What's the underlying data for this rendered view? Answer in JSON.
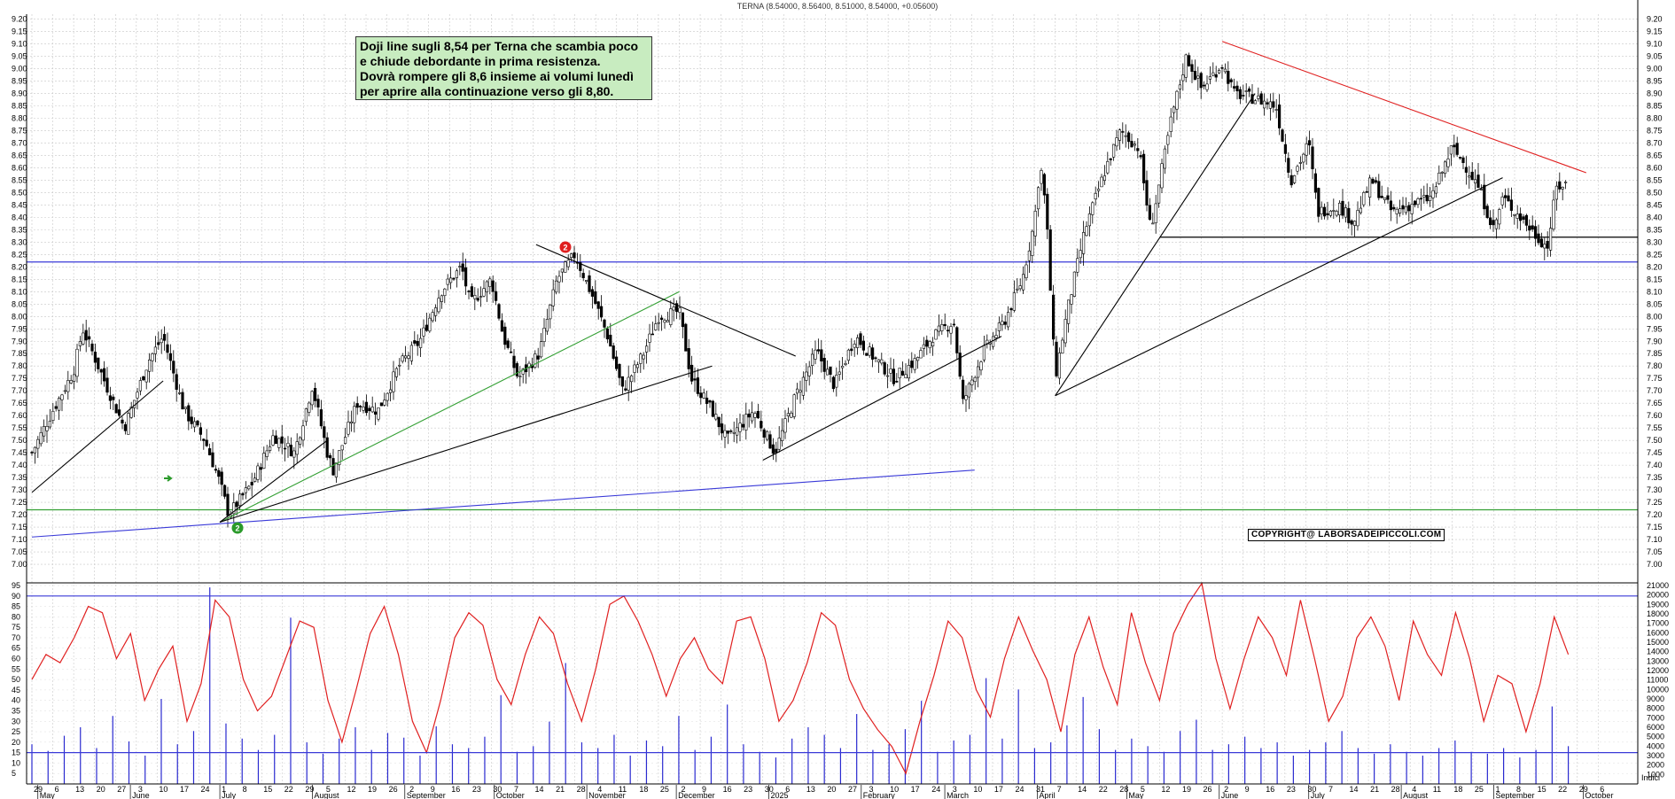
{
  "header": {
    "title": "TERNA (8.54000, 8.56400, 8.51000, 8.54000, +0.05600)"
  },
  "annotation": {
    "lines": [
      "Doji line sugli 8,54 per Terna che scambia poco",
      "e chiude debordante in prima resistenza.",
      "Dovrà rompere gli 8,6 insieme ai volumi lunedì",
      "per aprire alla continuazione verso gli 8,80."
    ]
  },
  "copyright": "COPYRIGHT@ LABORSADEIPICCOLI.COM",
  "markers": {
    "red_label": "2",
    "green_label": "2"
  },
  "colors": {
    "grid": "#c8c8c8",
    "candle": "#000000",
    "support_blue": "#3a3ad8",
    "support_green": "#35a035",
    "trend_red": "#e02020",
    "trend_black": "#000000",
    "oscillator": "#e02020",
    "volume": "#2a2ad0",
    "note_bg": "#c8ecc0"
  },
  "chart_data": [
    {
      "type": "candlestick",
      "title": "TERNA (8.54000, 8.56400, 8.51000, 8.54000, +0.05600)",
      "ylim": [
        6.95,
        9.22
      ],
      "y_ticks": [
        "7.00",
        "7.05",
        "7.10",
        "7.15",
        "7.20",
        "7.25",
        "7.30",
        "7.35",
        "7.40",
        "7.45",
        "7.50",
        "7.55",
        "7.60",
        "7.65",
        "7.70",
        "7.75",
        "7.80",
        "7.85",
        "7.90",
        "7.95",
        "8.00",
        "8.05",
        "8.10",
        "8.15",
        "8.20",
        "8.25",
        "8.30",
        "8.35",
        "8.40",
        "8.45",
        "8.50",
        "8.55",
        "8.60",
        "8.65",
        "8.70",
        "8.75",
        "8.80",
        "8.85",
        "8.90",
        "8.95",
        "9.00",
        "9.05",
        "9.10",
        "9.15",
        "9.20"
      ],
      "close_path": [
        [
          "2024-04-29",
          7.45
        ],
        [
          "2024-05-06",
          7.62
        ],
        [
          "2024-05-13",
          7.78
        ],
        [
          "2024-05-16",
          7.95
        ],
        [
          "2024-05-24",
          7.72
        ],
        [
          "2024-05-30",
          7.55
        ],
        [
          "2024-06-07",
          7.82
        ],
        [
          "2024-06-12",
          7.92
        ],
        [
          "2024-06-19",
          7.62
        ],
        [
          "2024-06-26",
          7.5
        ],
        [
          "2024-07-01",
          7.33
        ],
        [
          "2024-07-04",
          7.2
        ],
        [
          "2024-07-12",
          7.33
        ],
        [
          "2024-07-19",
          7.52
        ],
        [
          "2024-07-26",
          7.45
        ],
        [
          "2024-08-01",
          7.72
        ],
        [
          "2024-08-06",
          7.45
        ],
        [
          "2024-08-08",
          7.38
        ],
        [
          "2024-08-16",
          7.65
        ],
        [
          "2024-08-23",
          7.62
        ],
        [
          "2024-08-30",
          7.8
        ],
        [
          "2024-09-06",
          7.9
        ],
        [
          "2024-09-13",
          8.1
        ],
        [
          "2024-09-20",
          8.2
        ],
        [
          "2024-09-23",
          8.05
        ],
        [
          "2024-09-30",
          8.15
        ],
        [
          "2024-10-04",
          7.92
        ],
        [
          "2024-10-09",
          7.75
        ],
        [
          "2024-10-16",
          7.85
        ],
        [
          "2024-10-22",
          8.15
        ],
        [
          "2024-10-28",
          8.25
        ],
        [
          "2024-11-04",
          8.05
        ],
        [
          "2024-11-08",
          7.92
        ],
        [
          "2024-11-13",
          7.7
        ],
        [
          "2024-11-20",
          7.85
        ],
        [
          "2024-11-25",
          8.0
        ],
        [
          "2024-12-02",
          8.02
        ],
        [
          "2024-12-06",
          7.75
        ],
        [
          "2024-12-13",
          7.62
        ],
        [
          "2024-12-18",
          7.5
        ],
        [
          "2024-12-27",
          7.62
        ],
        [
          "2025-01-03",
          7.45
        ],
        [
          "2025-01-10",
          7.68
        ],
        [
          "2025-01-17",
          7.86
        ],
        [
          "2025-01-23",
          7.72
        ],
        [
          "2025-01-30",
          7.92
        ],
        [
          "2025-02-04",
          7.85
        ],
        [
          "2025-02-12",
          7.75
        ],
        [
          "2025-02-19",
          7.82
        ],
        [
          "2025-02-25",
          7.92
        ],
        [
          "2025-03-04",
          7.98
        ],
        [
          "2025-03-07",
          7.65
        ],
        [
          "2025-03-14",
          7.86
        ],
        [
          "2025-03-21",
          7.98
        ],
        [
          "2025-03-27",
          8.15
        ],
        [
          "2025-03-31",
          8.38
        ],
        [
          "2025-04-02",
          8.62
        ],
        [
          "2025-04-04",
          8.42
        ],
        [
          "2025-04-07",
          7.75
        ],
        [
          "2025-04-11",
          8.02
        ],
        [
          "2025-04-17",
          8.35
        ],
        [
          "2025-04-24",
          8.6
        ],
        [
          "2025-04-29",
          8.75
        ],
        [
          "2025-05-05",
          8.68
        ],
        [
          "2025-05-09",
          8.35
        ],
        [
          "2025-05-16",
          8.8
        ],
        [
          "2025-05-21",
          9.05
        ],
        [
          "2025-05-26",
          8.92
        ],
        [
          "2025-06-02",
          9.02
        ],
        [
          "2025-06-06",
          8.9
        ],
        [
          "2025-06-13",
          8.88
        ],
        [
          "2025-06-20",
          8.85
        ],
        [
          "2025-06-25",
          8.55
        ],
        [
          "2025-07-01",
          8.7
        ],
        [
          "2025-07-04",
          8.42
        ],
        [
          "2025-07-11",
          8.45
        ],
        [
          "2025-07-16",
          8.38
        ],
        [
          "2025-07-22",
          8.55
        ],
        [
          "2025-07-29",
          8.42
        ],
        [
          "2025-08-04",
          8.45
        ],
        [
          "2025-08-11",
          8.48
        ],
        [
          "2025-08-18",
          8.68
        ],
        [
          "2025-08-22",
          8.62
        ],
        [
          "2025-08-27",
          8.52
        ],
        [
          "2025-09-01",
          8.35
        ],
        [
          "2025-09-04",
          8.48
        ],
        [
          "2025-09-10",
          8.4
        ],
        [
          "2025-09-15",
          8.33
        ],
        [
          "2025-09-19",
          8.28
        ],
        [
          "2025-09-22",
          8.52
        ],
        [
          "2025-09-26",
          8.54
        ]
      ],
      "last_close": 8.54,
      "horizontal_levels": [
        {
          "y": 8.22,
          "color": "blue"
        },
        {
          "y": 7.22,
          "color": "green"
        },
        {
          "y": 8.32,
          "color": "black",
          "from": "2025-05-12"
        }
      ],
      "trendlines": [
        {
          "color": "black",
          "from": [
            "2024-04-29",
            7.29
          ],
          "to": [
            "2024-06-12",
            7.74
          ]
        },
        {
          "color": "blue",
          "from": [
            "2024-04-29",
            7.11
          ],
          "to": [
            "2025-03-11",
            7.38
          ]
        },
        {
          "color": "green",
          "from": [
            "2024-07-01",
            7.17
          ],
          "to": [
            "2024-12-02",
            8.1
          ]
        },
        {
          "color": "black",
          "from": [
            "2024-07-01",
            7.17
          ],
          "to": [
            "2024-12-13",
            7.8
          ]
        },
        {
          "color": "black",
          "from": [
            "2024-07-01",
            7.17
          ],
          "to": [
            "2024-08-06",
            7.5
          ]
        },
        {
          "color": "black",
          "from": [
            "2024-10-15",
            8.29
          ],
          "to": [
            "2025-01-10",
            7.84
          ]
        },
        {
          "color": "black",
          "from": [
            "2024-12-30",
            7.42
          ],
          "to": [
            "2025-03-20",
            7.92
          ]
        },
        {
          "color": "black",
          "from": [
            "2025-04-07",
            7.68
          ],
          "to": [
            "2025-06-13",
            8.9
          ]
        },
        {
          "color": "black",
          "from": [
            "2025-04-07",
            7.68
          ],
          "to": [
            "2025-09-04",
            8.56
          ]
        },
        {
          "color": "red",
          "from": [
            "2025-06-02",
            9.11
          ],
          "to": [
            "2025-10-02",
            8.58
          ]
        }
      ]
    },
    {
      "type": "line",
      "name": "oscillator",
      "ylim": [
        0,
        95
      ],
      "y_ticks": [
        "5",
        "10",
        "15",
        "20",
        "25",
        "30",
        "35",
        "40",
        "45",
        "50",
        "55",
        "60",
        "65",
        "70",
        "75",
        "80",
        "85",
        "90",
        "95"
      ],
      "levels": [
        90,
        15
      ],
      "series": [
        {
          "values": [
            50,
            62,
            58,
            70,
            85,
            82,
            60,
            72,
            40,
            55,
            66,
            30,
            48,
            88,
            80,
            50,
            35,
            42,
            60,
            78,
            75,
            40,
            20,
            45,
            72,
            85,
            62,
            30,
            15,
            40,
            70,
            82,
            76,
            50,
            38,
            62,
            80,
            72,
            48,
            30,
            55,
            86,
            90,
            78,
            62,
            42,
            60,
            70,
            55,
            48,
            78,
            80,
            60,
            30,
            40,
            58,
            82,
            76,
            50,
            36,
            26,
            18,
            5,
            30,
            52,
            78,
            70,
            45,
            32,
            60,
            80,
            64,
            50,
            25,
            62,
            80,
            56,
            38,
            82,
            58,
            40,
            72,
            86,
            96,
            60,
            36,
            60,
            80,
            70,
            52,
            88,
            60,
            30,
            42,
            70,
            80,
            66,
            40,
            78,
            62,
            52,
            82,
            60,
            30,
            52,
            48,
            25,
            48,
            80,
            62
          ]
        }
      ]
    },
    {
      "type": "bar",
      "name": "volume",
      "ylim": [
        0,
        21000
      ],
      "y_ticks": [
        "1000",
        "2000",
        "3000",
        "4000",
        "5000",
        "6000",
        "7000",
        "8000",
        "9000",
        "10000",
        "11000",
        "12000",
        "13000",
        "14000",
        "15000",
        "16000",
        "17000",
        "18000",
        "19000",
        "20000",
        "21000"
      ],
      "values": [
        4200,
        3500,
        5100,
        6000,
        3800,
        7200,
        4500,
        3000,
        9000,
        4200,
        5600,
        20800,
        6400,
        4800,
        3600,
        5200,
        17600,
        4400,
        3200,
        4800,
        6000,
        3600,
        5400,
        4900,
        3000,
        6100,
        4200,
        3800,
        5000,
        9400,
        3400,
        4000,
        6600,
        12800,
        4400,
        3800,
        5200,
        3000,
        4600,
        4000,
        7200,
        3600,
        5000,
        8400,
        4200,
        3400,
        2800,
        4800,
        6000,
        5200,
        3800,
        7400,
        3600,
        4200,
        5800,
        8800,
        3400,
        4600,
        5200,
        11200,
        4800,
        10000,
        3800,
        4400,
        6200,
        9200,
        5800,
        3600,
        4800,
        4000,
        3400,
        5600,
        6800,
        3600,
        4200,
        5000,
        3800,
        4400,
        3000,
        3600,
        4400,
        5600,
        3800,
        3200,
        4200,
        3400,
        3000,
        3800,
        4600,
        3400,
        3200,
        3800,
        2800,
        3600,
        8200,
        4000
      ]
    }
  ],
  "x_axis": {
    "day_ticks": [
      "29",
      "6",
      "13",
      "20",
      "27",
      "3",
      "10",
      "17",
      "24",
      "1",
      "8",
      "15",
      "22",
      "29",
      "5",
      "12",
      "19",
      "26",
      "2",
      "9",
      "16",
      "23",
      "30",
      "7",
      "14",
      "21",
      "28",
      "4",
      "11",
      "18",
      "25",
      "2",
      "9",
      "16",
      "23",
      "30",
      "6",
      "13",
      "20",
      "27",
      "3",
      "10",
      "17",
      "24",
      "3",
      "10",
      "17",
      "24",
      "31",
      "7",
      "14",
      "22",
      "28",
      "5",
      "12",
      "19",
      "26",
      "2",
      "9",
      "16",
      "23",
      "30",
      "7",
      "14",
      "21",
      "28",
      "4",
      "11",
      "18",
      "25",
      "1",
      "8",
      "15",
      "22",
      "29",
      "6"
    ],
    "month_labels": [
      "May",
      "June",
      "July",
      "August",
      "September",
      "October",
      "November",
      "December",
      "2025",
      "February",
      "March",
      "April",
      "May",
      "June",
      "July",
      "August",
      "September",
      "October"
    ],
    "index_label": "Indici"
  }
}
